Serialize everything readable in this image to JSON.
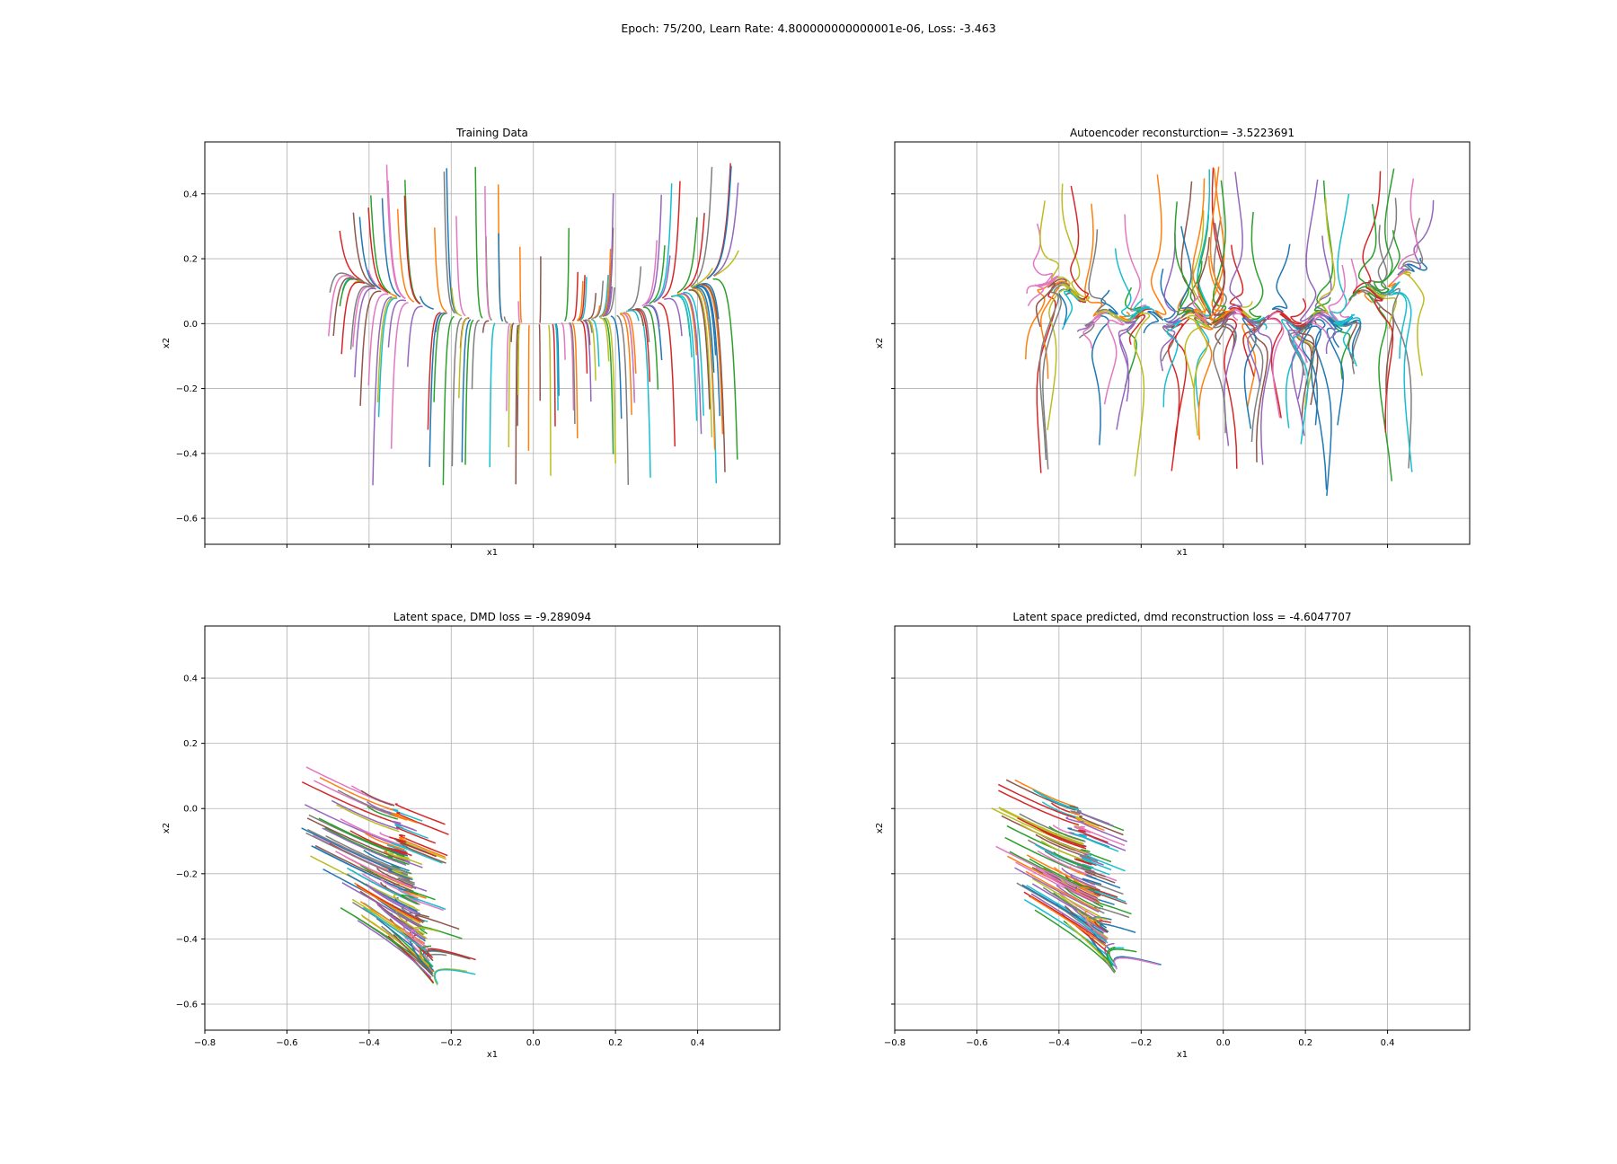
{
  "suptitle": "Epoch: 75/200, Learn Rate: 4.800000000000001e-06, Loss: -3.463",
  "palette": [
    "#1f77b4",
    "#ff7f0e",
    "#2ca02c",
    "#d62728",
    "#9467bd",
    "#8c564b",
    "#e377c2",
    "#7f7f7f",
    "#bcbd22",
    "#17becf"
  ],
  "chart_data": [
    {
      "type": "line",
      "title": "Training Data",
      "xlabel": "x1",
      "ylabel": "x2",
      "xlim": [
        -0.8,
        0.6
      ],
      "ylim": [
        -0.68,
        0.56
      ],
      "grid": true,
      "xticks": [
        -0.8,
        -0.6,
        -0.4,
        -0.2,
        0.0,
        0.2,
        0.4
      ],
      "yticks": [
        0.4,
        0.2,
        0.0,
        -0.2,
        -0.4,
        -0.6
      ],
      "show_xticklabels": false,
      "show_yticklabels": true,
      "trajectories": {
        "count": 150,
        "x_range": [
          -0.5,
          0.5
        ],
        "y_range": [
          -0.5,
          0.5
        ],
        "manifold": "x2 = x1^2",
        "description": "trajectories starting in x1 in [-0.5,0.5], x2 in [-0.5,0.5] converging vertically onto the parabola x2 = x1^2"
      }
    },
    {
      "type": "line",
      "title": "Autoencoder reconsturction= -3.5223691",
      "xlabel": "x1",
      "ylabel": "x2",
      "xlim": [
        -0.8,
        0.6
      ],
      "ylim": [
        -0.68,
        0.56
      ],
      "grid": true,
      "xticks": [
        -0.8,
        -0.6,
        -0.4,
        -0.2,
        0.0,
        0.2,
        0.4
      ],
      "yticks": [
        0.4,
        0.2,
        0.0,
        -0.2,
        -0.4,
        -0.6
      ],
      "show_xticklabels": false,
      "show_yticklabels": false,
      "trajectories": {
        "count": 150,
        "x_range": [
          -0.5,
          0.52
        ],
        "y_range": [
          -0.5,
          0.52
        ],
        "manifold": "wavy x2 ≈ x1^2 with oscillation",
        "description": "reconstructed trajectories, similar to training data but wavy"
      }
    },
    {
      "type": "line",
      "title": "Latent space, DMD loss = -9.289094",
      "xlabel": "x1",
      "ylabel": "x2",
      "xlim": [
        -0.8,
        0.6
      ],
      "ylim": [
        -0.68,
        0.56
      ],
      "grid": true,
      "xticks": [
        -0.8,
        -0.6,
        -0.4,
        -0.2,
        0.0,
        0.2,
        0.4
      ],
      "yticks": [
        0.4,
        0.2,
        0.0,
        -0.2,
        -0.4,
        -0.6
      ],
      "xticklabels": [
        "−0.8",
        "−0.6",
        "−0.4",
        "−0.2",
        "0.0",
        "0.2",
        "0.4"
      ],
      "show_xticklabels": true,
      "show_yticklabels": true,
      "trajectories": {
        "count": 150,
        "x_range": [
          -0.75,
          -0.2
        ],
        "y_range": [
          -0.62,
          0.07
        ],
        "manifold_center": [
          -0.38,
          -0.2
        ],
        "description": "latent trajectories forming a tilted fan around x1 ≈ -0.4"
      }
    },
    {
      "type": "line",
      "title": "Latent space predicted, dmd reconstruction loss = -4.6047707",
      "xlabel": "x1",
      "ylabel": "x2",
      "xlim": [
        -0.8,
        0.6
      ],
      "ylim": [
        -0.68,
        0.56
      ],
      "grid": true,
      "xticks": [
        -0.8,
        -0.6,
        -0.4,
        -0.2,
        0.0,
        0.2,
        0.4
      ],
      "yticks": [
        0.4,
        0.2,
        0.0,
        -0.2,
        -0.4,
        -0.6
      ],
      "xticklabels": [
        "−0.8",
        "−0.6",
        "−0.4",
        "−0.2",
        "0.0",
        "0.2",
        "0.4"
      ],
      "show_xticklabels": true,
      "show_yticklabels": false,
      "trajectories": {
        "count": 150,
        "x_range": [
          -0.72,
          -0.23
        ],
        "y_range": [
          -0.56,
          0.06
        ],
        "manifold_center": [
          -0.39,
          -0.2
        ],
        "description": "predicted latent trajectories, similar fan shape"
      }
    }
  ]
}
